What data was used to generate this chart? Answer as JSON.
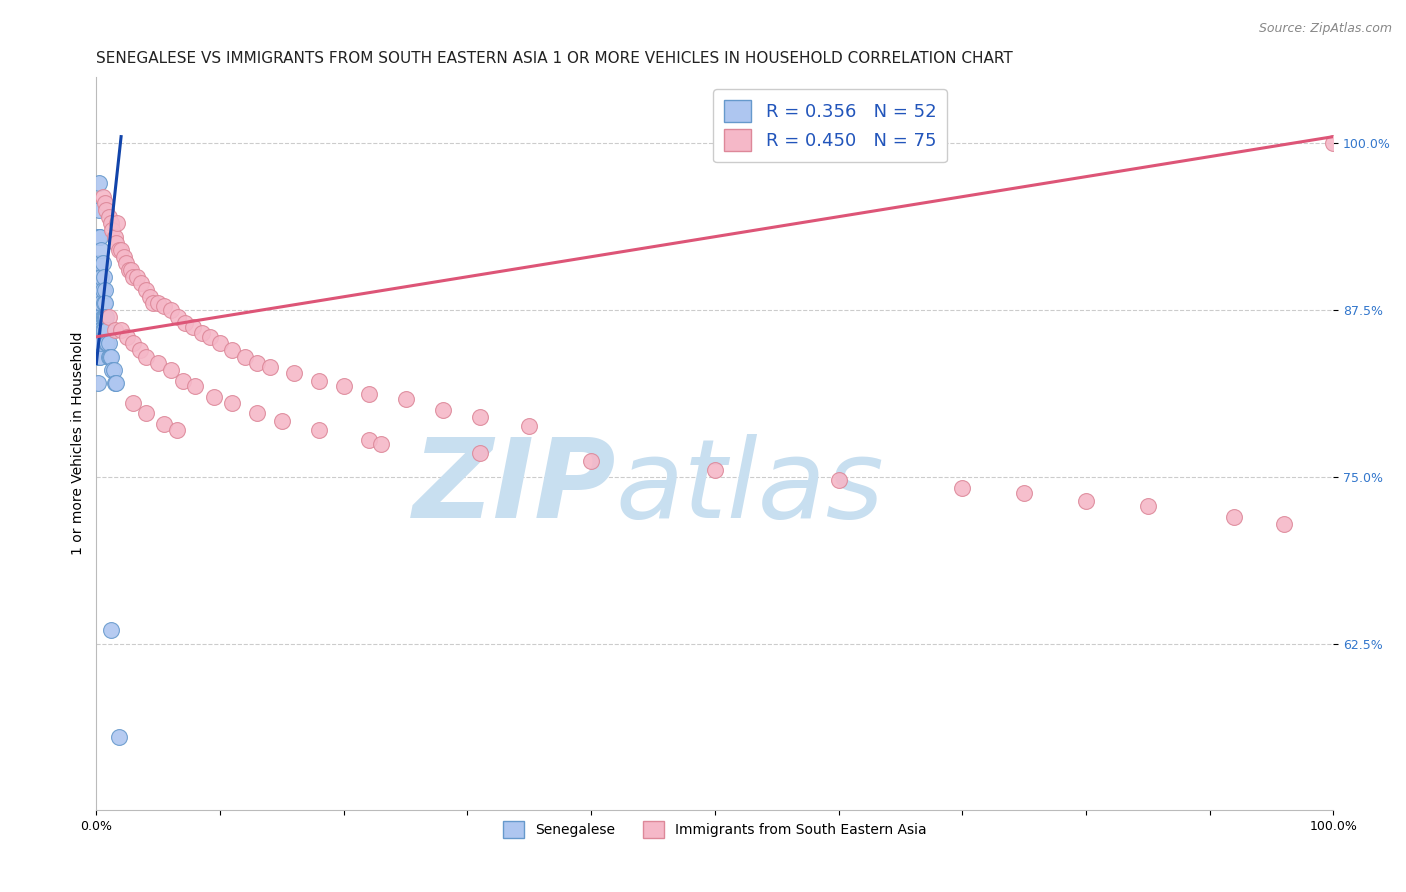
{
  "title": "SENEGALESE VS IMMIGRANTS FROM SOUTH EASTERN ASIA 1 OR MORE VEHICLES IN HOUSEHOLD CORRELATION CHART",
  "source": "Source: ZipAtlas.com",
  "ylabel": "1 or more Vehicles in Household",
  "xlabel": "",
  "xlim": [
    0.0,
    1.0
  ],
  "ylim": [
    0.5,
    1.05
  ],
  "yticks": [
    0.625,
    0.75,
    0.875,
    1.0
  ],
  "ytick_labels": [
    "62.5%",
    "75.0%",
    "87.5%",
    "100.0%"
  ],
  "xticks": [
    0.0,
    0.1,
    0.2,
    0.3,
    0.4,
    0.5,
    0.6,
    0.7,
    0.8,
    0.9,
    1.0
  ],
  "xtick_labels": [
    "0.0%",
    "",
    "",
    "",
    "",
    "",
    "",
    "",
    "",
    "",
    "100.0%"
  ],
  "background_color": "#ffffff",
  "grid_color": "#cccccc",
  "watermark_zip": "ZIP",
  "watermark_atlas": "atlas",
  "watermark_color_zip": "#c8dff0",
  "watermark_color_atlas": "#c8dff0",
  "blue_color": "#aec6f0",
  "blue_edge": "#6699cc",
  "blue_line": "#1144aa",
  "pink_color": "#f5b8c8",
  "pink_edge": "#dd8899",
  "pink_line": "#dd5577",
  "legend_text_color": "#2255bb",
  "R_blue": 0.356,
  "N_blue": 52,
  "R_pink": 0.45,
  "N_pink": 75,
  "series_blue_name": "Senegalese",
  "series_pink_name": "Immigrants from South Eastern Asia",
  "title_fontsize": 11,
  "source_fontsize": 9,
  "axis_label_fontsize": 10,
  "tick_fontsize": 9,
  "legend_fontsize": 13,
  "blue_line_x0": 0.0,
  "blue_line_y0": 0.835,
  "blue_line_x1": 0.02,
  "blue_line_y1": 1.005,
  "pink_line_x0": 0.0,
  "pink_line_y0": 0.855,
  "pink_line_x1": 1.0,
  "pink_line_y1": 1.005,
  "blue_x": [
    0.001,
    0.001,
    0.001,
    0.001,
    0.001,
    0.001,
    0.001,
    0.002,
    0.002,
    0.002,
    0.002,
    0.002,
    0.002,
    0.002,
    0.002,
    0.003,
    0.003,
    0.003,
    0.003,
    0.003,
    0.003,
    0.004,
    0.004,
    0.004,
    0.004,
    0.004,
    0.005,
    0.005,
    0.005,
    0.005,
    0.006,
    0.006,
    0.006,
    0.006,
    0.007,
    0.007,
    0.007,
    0.008,
    0.008,
    0.008,
    0.009,
    0.009,
    0.01,
    0.01,
    0.011,
    0.012,
    0.013,
    0.014,
    0.015,
    0.016,
    0.012,
    0.018
  ],
  "blue_y": [
    0.93,
    0.91,
    0.89,
    0.87,
    0.85,
    0.84,
    0.82,
    0.97,
    0.95,
    0.93,
    0.91,
    0.89,
    0.87,
    0.85,
    0.84,
    0.93,
    0.91,
    0.89,
    0.87,
    0.86,
    0.84,
    0.92,
    0.9,
    0.88,
    0.86,
    0.85,
    0.91,
    0.89,
    0.87,
    0.86,
    0.9,
    0.88,
    0.87,
    0.86,
    0.89,
    0.88,
    0.87,
    0.87,
    0.86,
    0.85,
    0.86,
    0.85,
    0.85,
    0.84,
    0.84,
    0.84,
    0.83,
    0.83,
    0.82,
    0.82,
    0.635,
    0.555
  ],
  "pink_x": [
    0.005,
    0.007,
    0.008,
    0.01,
    0.012,
    0.013,
    0.015,
    0.016,
    0.017,
    0.018,
    0.02,
    0.022,
    0.024,
    0.026,
    0.028,
    0.03,
    0.033,
    0.036,
    0.04,
    0.043,
    0.046,
    0.05,
    0.055,
    0.06,
    0.066,
    0.072,
    0.078,
    0.085,
    0.092,
    0.1,
    0.11,
    0.12,
    0.13,
    0.14,
    0.16,
    0.18,
    0.2,
    0.22,
    0.25,
    0.28,
    0.31,
    0.35,
    0.01,
    0.015,
    0.02,
    0.025,
    0.03,
    0.035,
    0.04,
    0.05,
    0.06,
    0.07,
    0.08,
    0.095,
    0.11,
    0.13,
    0.15,
    0.18,
    0.22,
    0.03,
    0.04,
    0.055,
    0.065,
    0.23,
    0.31,
    0.4,
    0.5,
    0.6,
    0.7,
    0.75,
    0.8,
    0.85,
    0.92,
    0.96,
    1.0
  ],
  "pink_y": [
    0.96,
    0.955,
    0.95,
    0.945,
    0.94,
    0.935,
    0.93,
    0.925,
    0.94,
    0.92,
    0.92,
    0.915,
    0.91,
    0.905,
    0.905,
    0.9,
    0.9,
    0.895,
    0.89,
    0.885,
    0.88,
    0.88,
    0.878,
    0.875,
    0.87,
    0.865,
    0.862,
    0.858,
    0.855,
    0.85,
    0.845,
    0.84,
    0.835,
    0.832,
    0.828,
    0.822,
    0.818,
    0.812,
    0.808,
    0.8,
    0.795,
    0.788,
    0.87,
    0.86,
    0.86,
    0.855,
    0.85,
    0.845,
    0.84,
    0.835,
    0.83,
    0.822,
    0.818,
    0.81,
    0.805,
    0.798,
    0.792,
    0.785,
    0.778,
    0.805,
    0.798,
    0.79,
    0.785,
    0.775,
    0.768,
    0.762,
    0.755,
    0.748,
    0.742,
    0.738,
    0.732,
    0.728,
    0.72,
    0.715,
    1.0
  ]
}
